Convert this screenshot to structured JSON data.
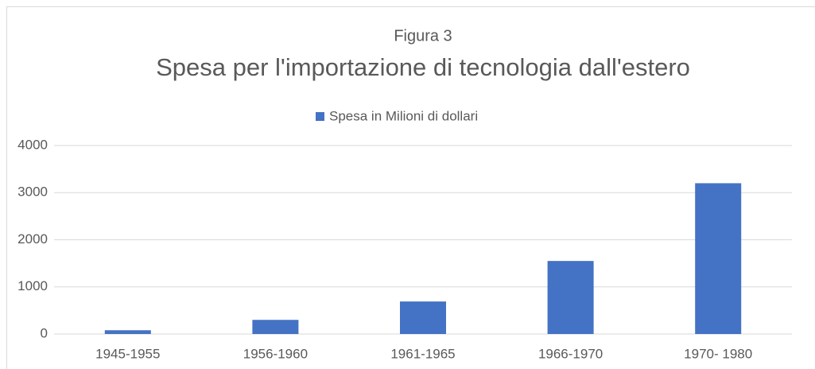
{
  "chart_data": {
    "type": "bar",
    "figure_label": "Figura 3",
    "title": "Spesa per l'importazione di tecnologia dall'estero",
    "categories": [
      "1945-1955",
      "1956-1960",
      "1961-1965",
      "1966-1970",
      "1970- 1980"
    ],
    "series": [
      {
        "name": "Spesa in Milioni di dollari",
        "color": "#4472c4",
        "values": [
          80,
          300,
          690,
          1550,
          3200
        ]
      }
    ],
    "ylim": [
      0,
      4000
    ],
    "yticks": [
      0,
      1000,
      2000,
      3000,
      4000
    ],
    "grid": true,
    "legend": "top"
  }
}
